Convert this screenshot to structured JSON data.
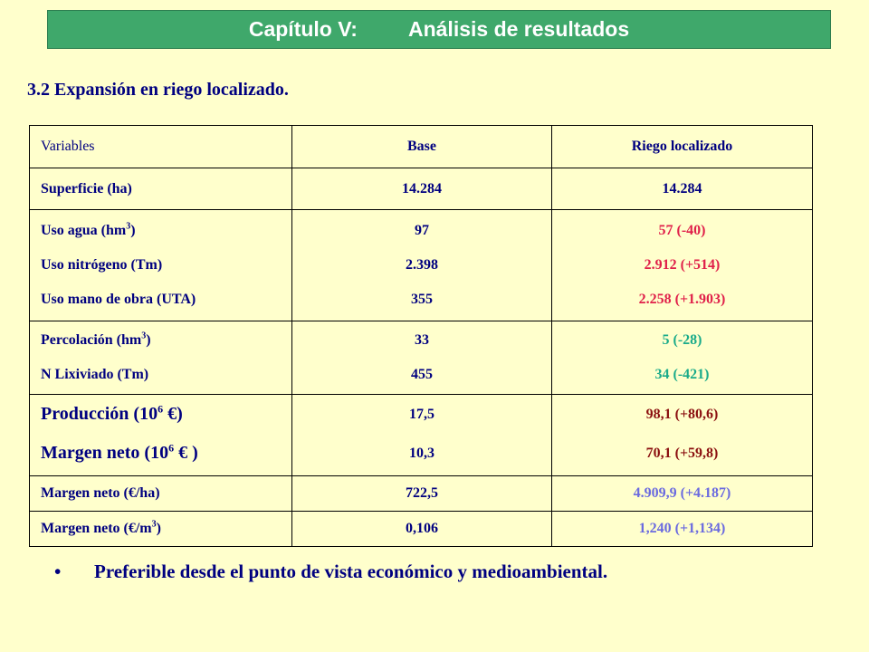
{
  "banner": {
    "chapter": "Capítulo V:",
    "topic": "Análisis de resultados"
  },
  "subtitle": "3.2 Expansión en riego localizado.",
  "table": {
    "headers": [
      "Variables",
      "Base",
      "Riego localizado"
    ],
    "superficie": {
      "label": "Superficie (ha)",
      "base": "14.284",
      "riego": "14.284"
    },
    "recursos": {
      "labels": [
        "Uso agua (hm",
        "Uso nitrógeno (Tm)",
        "Uso mano de obra (UTA)"
      ],
      "base": [
        "97",
        "2.398",
        "355"
      ],
      "riego": [
        "57 (-40)",
        "2.912 (+514)",
        "2.258 (+1.903)"
      ]
    },
    "ambiental": {
      "labels": [
        "Percolación (hm",
        "N Lixiviado (Tm)"
      ],
      "base": [
        "33",
        "455"
      ],
      "riego": [
        "5 (-28)",
        "34 (-421)"
      ]
    },
    "economico": {
      "labels": [
        "Producción (10",
        "Margen neto (10"
      ],
      "base": [
        "17,5",
        "10,3"
      ],
      "riego": [
        "98,1 (+80,6)",
        "70,1 (+59,8)"
      ]
    },
    "margen_ha": {
      "label": "Margen neto (€/ha)",
      "base": "722,5",
      "riego": "4.909,9 (+4.187)"
    },
    "margen_m3": {
      "label": "Margen neto (€/m",
      "base": "0,106",
      "riego": "1,240 (+1,134)"
    }
  },
  "bullet": {
    "symbol": "•",
    "text": "Preferible desde el punto de vista económico y medioambiental."
  },
  "colors": {
    "background": "#ffffcc",
    "banner": "#3fa86b",
    "text": "#000080",
    "resource_change": "#e0204a",
    "environment_change": "#1aab8a",
    "economic_change": "#8b1010",
    "margin_change": "#6a6ae0"
  }
}
